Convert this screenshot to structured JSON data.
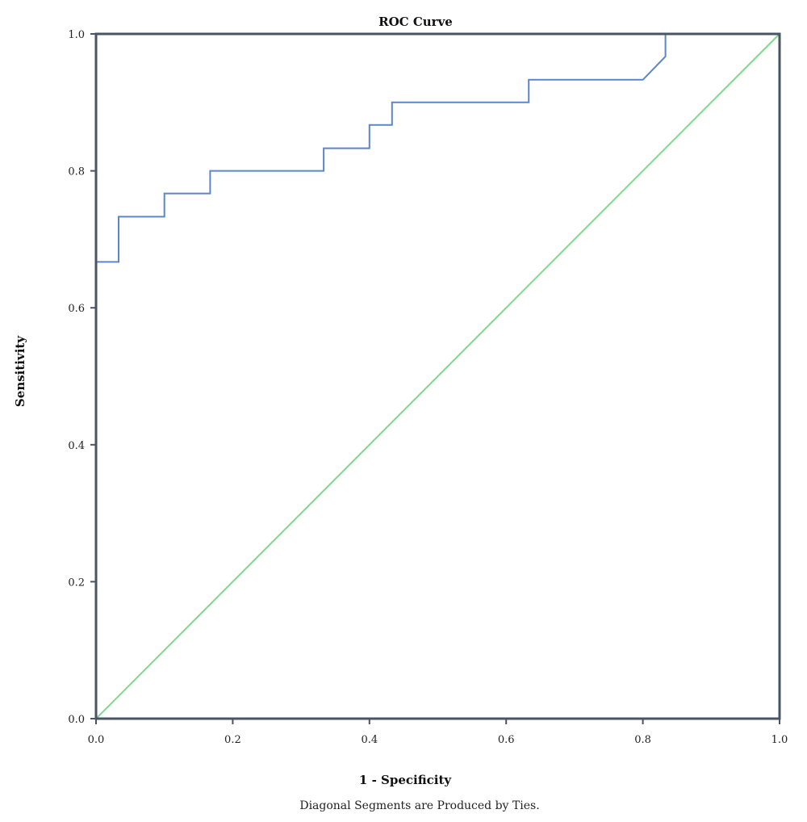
{
  "chart_data": {
    "type": "line",
    "title": "ROC Curve",
    "xlabel": "1 - Specificity",
    "ylabel": "Sensitivity",
    "footnote": "Diagonal Segments are Produced by Ties.",
    "xlim": [
      0,
      1
    ],
    "ylim": [
      0,
      1
    ],
    "grid": false,
    "x_ticks": [
      "0.0",
      "0.2",
      "0.4",
      "0.6",
      "0.8",
      "1.0"
    ],
    "y_ticks": [
      "0.0",
      "0.2",
      "0.4",
      "0.6",
      "0.8",
      "1.0"
    ],
    "series": [
      {
        "color": "#5b86c9",
        "points": [
          [
            0.0,
            0.0
          ],
          [
            0.0,
            0.667
          ],
          [
            0.033,
            0.667
          ],
          [
            0.033,
            0.733
          ],
          [
            0.1,
            0.733
          ],
          [
            0.1,
            0.767
          ],
          [
            0.167,
            0.767
          ],
          [
            0.167,
            0.8
          ],
          [
            0.333,
            0.8
          ],
          [
            0.333,
            0.833
          ],
          [
            0.4,
            0.833
          ],
          [
            0.4,
            0.867
          ],
          [
            0.433,
            0.867
          ],
          [
            0.433,
            0.9
          ],
          [
            0.633,
            0.9
          ],
          [
            0.633,
            0.933
          ],
          [
            0.8,
            0.933
          ],
          [
            0.833,
            0.967
          ],
          [
            0.833,
            1.0
          ],
          [
            1.0,
            1.0
          ]
        ]
      },
      {
        "color": "#7ed98a",
        "points": [
          [
            0.0,
            0.0
          ],
          [
            1.0,
            1.0
          ]
        ]
      }
    ]
  },
  "colors": {
    "frame": "#4a5563",
    "reference_line": "#7ed98a",
    "roc_line": "#5b86c9"
  }
}
